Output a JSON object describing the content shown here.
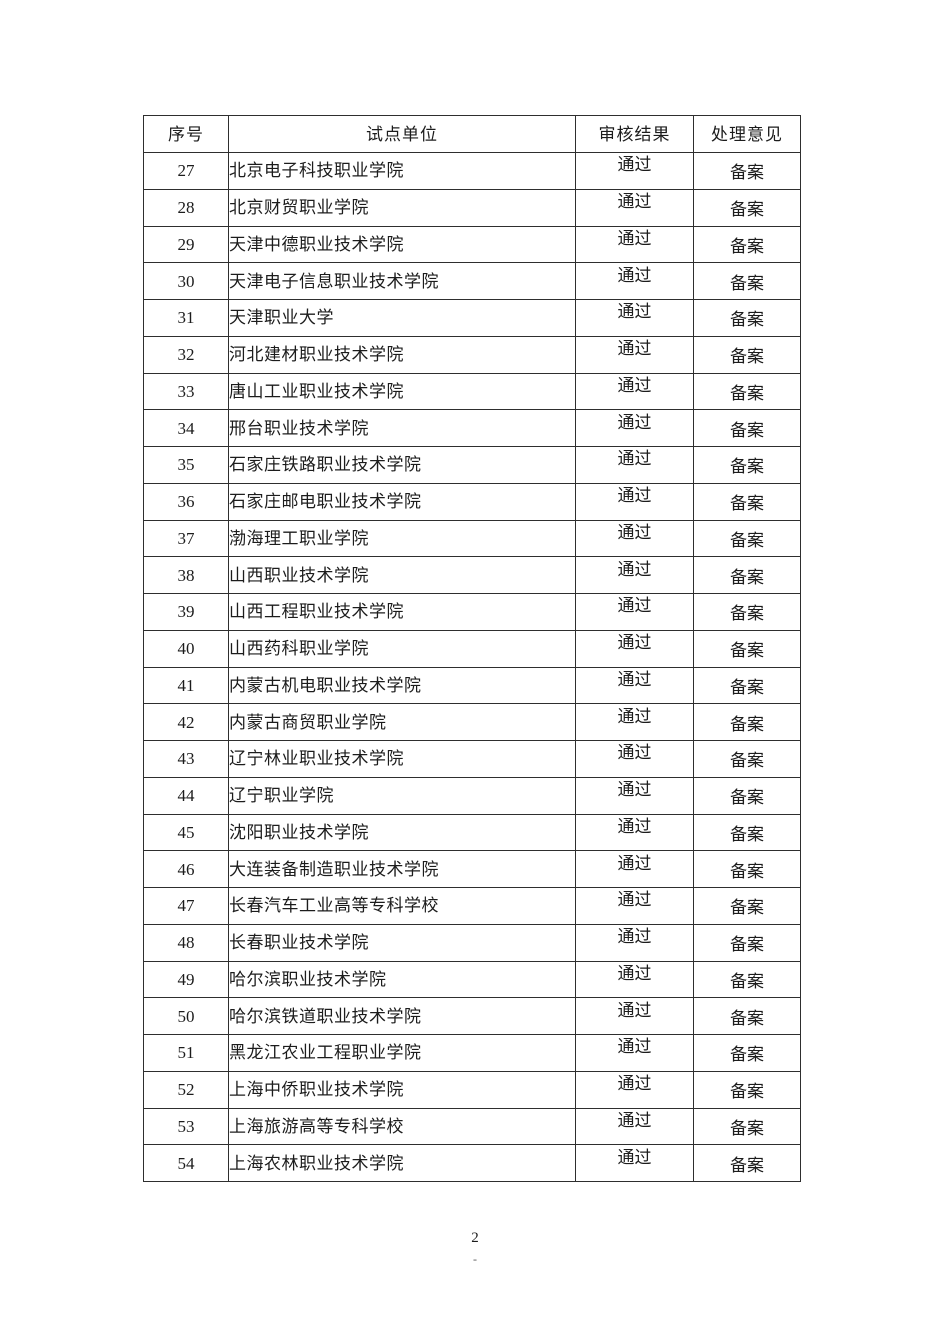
{
  "table": {
    "headers": [
      "序号",
      "试点单位",
      "审核结果",
      "处理意见"
    ],
    "rows": [
      {
        "no": "27",
        "unit": "北京电子科技职业学院",
        "result": "通过",
        "opinion": "备案"
      },
      {
        "no": "28",
        "unit": "北京财贸职业学院",
        "result": "通过",
        "opinion": "备案"
      },
      {
        "no": "29",
        "unit": "天津中德职业技术学院",
        "result": "通过",
        "opinion": "备案"
      },
      {
        "no": "30",
        "unit": "天津电子信息职业技术学院",
        "result": "通过",
        "opinion": "备案"
      },
      {
        "no": "31",
        "unit": "天津职业大学",
        "result": "通过",
        "opinion": "备案"
      },
      {
        "no": "32",
        "unit": "河北建材职业技术学院",
        "result": "通过",
        "opinion": "备案"
      },
      {
        "no": "33",
        "unit": "唐山工业职业技术学院",
        "result": "通过",
        "opinion": "备案"
      },
      {
        "no": "34",
        "unit": "邢台职业技术学院",
        "result": "通过",
        "opinion": "备案"
      },
      {
        "no": "35",
        "unit": "石家庄铁路职业技术学院",
        "result": "通过",
        "opinion": "备案"
      },
      {
        "no": "36",
        "unit": "石家庄邮电职业技术学院",
        "result": "通过",
        "opinion": "备案"
      },
      {
        "no": "37",
        "unit": "渤海理工职业学院",
        "result": "通过",
        "opinion": "备案"
      },
      {
        "no": "38",
        "unit": "山西职业技术学院",
        "result": "通过",
        "opinion": "备案"
      },
      {
        "no": "39",
        "unit": "山西工程职业技术学院",
        "result": "通过",
        "opinion": "备案"
      },
      {
        "no": "40",
        "unit": "山西药科职业学院",
        "result": "通过",
        "opinion": "备案"
      },
      {
        "no": "41",
        "unit": "内蒙古机电职业技术学院",
        "result": "通过",
        "opinion": "备案"
      },
      {
        "no": "42",
        "unit": "内蒙古商贸职业学院",
        "result": "通过",
        "opinion": "备案"
      },
      {
        "no": "43",
        "unit": "辽宁林业职业技术学院",
        "result": "通过",
        "opinion": "备案"
      },
      {
        "no": "44",
        "unit": "辽宁职业学院",
        "result": "通过",
        "opinion": "备案"
      },
      {
        "no": "45",
        "unit": "沈阳职业技术学院",
        "result": "通过",
        "opinion": "备案"
      },
      {
        "no": "46",
        "unit": "大连装备制造职业技术学院",
        "result": "通过",
        "opinion": "备案"
      },
      {
        "no": "47",
        "unit": "长春汽车工业高等专科学校",
        "result": "通过",
        "opinion": "备案"
      },
      {
        "no": "48",
        "unit": "长春职业技术学院",
        "result": "通过",
        "opinion": "备案"
      },
      {
        "no": "49",
        "unit": "哈尔滨职业技术学院",
        "result": "通过",
        "opinion": "备案"
      },
      {
        "no": "50",
        "unit": "哈尔滨铁道职业技术学院",
        "result": "通过",
        "opinion": "备案"
      },
      {
        "no": "51",
        "unit": "黑龙江农业工程职业学院",
        "result": "通过",
        "opinion": "备案"
      },
      {
        "no": "52",
        "unit": "上海中侨职业技术学院",
        "result": "通过",
        "opinion": "备案"
      },
      {
        "no": "53",
        "unit": "上海旅游高等专科学校",
        "result": "通过",
        "opinion": "备案"
      },
      {
        "no": "54",
        "unit": "上海农林职业技术学院",
        "result": "通过",
        "opinion": "备案"
      }
    ]
  },
  "footer": {
    "page_number": "2",
    "dash": "-"
  }
}
